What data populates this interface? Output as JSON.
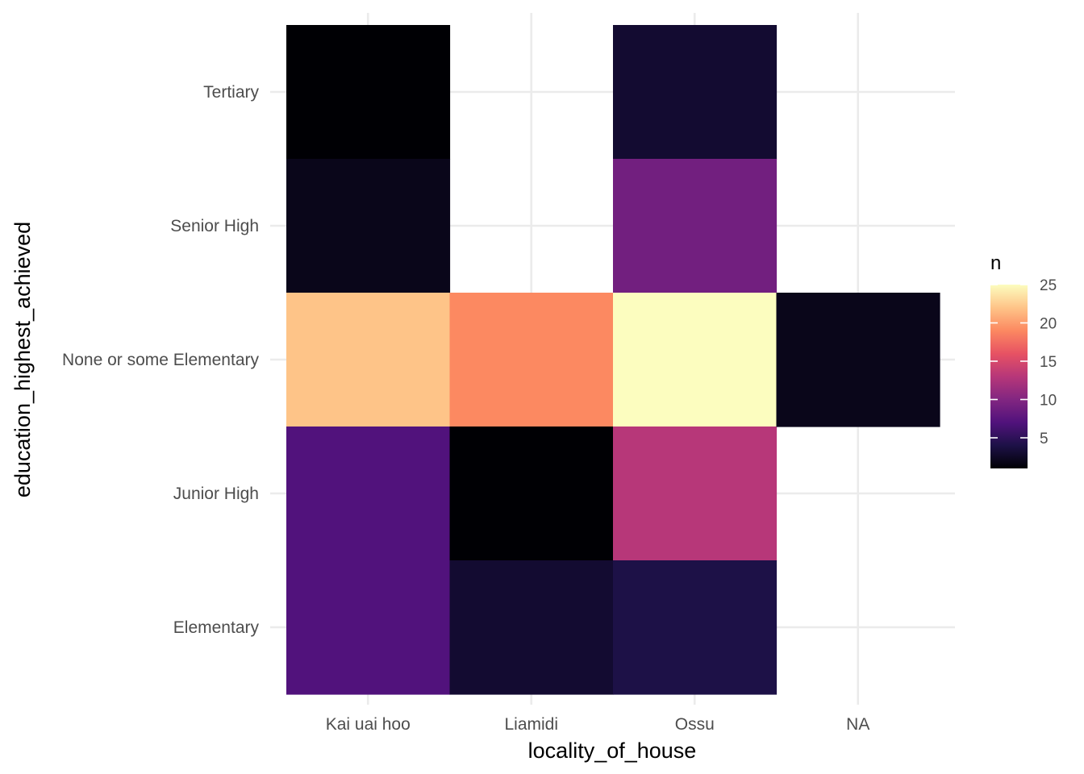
{
  "chart_data": {
    "type": "heatmap",
    "xlabel": "locality_of_house",
    "ylabel": "education_highest_achieved",
    "x_categories": [
      "Kai uai hoo",
      "Liamidi",
      "Ossu",
      "NA"
    ],
    "y_categories": [
      "Elementary",
      "Junior High",
      "None or some Elementary",
      "Senior High",
      "Tertiary"
    ],
    "cells": [
      {
        "x": "Kai uai hoo",
        "y": "Tertiary",
        "n": 1
      },
      {
        "x": "Kai uai hoo",
        "y": "Senior High",
        "n": 2
      },
      {
        "x": "Kai uai hoo",
        "y": "None or some Elementary",
        "n": 22
      },
      {
        "x": "Kai uai hoo",
        "y": "Junior High",
        "n": 7
      },
      {
        "x": "Kai uai hoo",
        "y": "Elementary",
        "n": 7
      },
      {
        "x": "Liamidi",
        "y": "None or some Elementary",
        "n": 19
      },
      {
        "x": "Liamidi",
        "y": "Junior High",
        "n": 1
      },
      {
        "x": "Liamidi",
        "y": "Elementary",
        "n": 3
      },
      {
        "x": "Ossu",
        "y": "Tertiary",
        "n": 3
      },
      {
        "x": "Ossu",
        "y": "Senior High",
        "n": 9
      },
      {
        "x": "Ossu",
        "y": "None or some Elementary",
        "n": 25
      },
      {
        "x": "Ossu",
        "y": "Junior High",
        "n": 13
      },
      {
        "x": "Ossu",
        "y": "Elementary",
        "n": 4
      },
      {
        "x": "NA",
        "y": "None or some Elementary",
        "n": 2
      }
    ],
    "legend": {
      "title": "n",
      "placement": "right",
      "min": 1,
      "max": 25,
      "breaks": [
        5,
        10,
        15,
        20,
        25
      ],
      "palette": "magma",
      "colors": [
        "#000004",
        "#1d1147",
        "#51127c",
        "#822681",
        "#b73779",
        "#e75263",
        "#fc8961",
        "#fec488",
        "#fcfdbf"
      ]
    },
    "grid": true,
    "background": "#ffffff"
  }
}
